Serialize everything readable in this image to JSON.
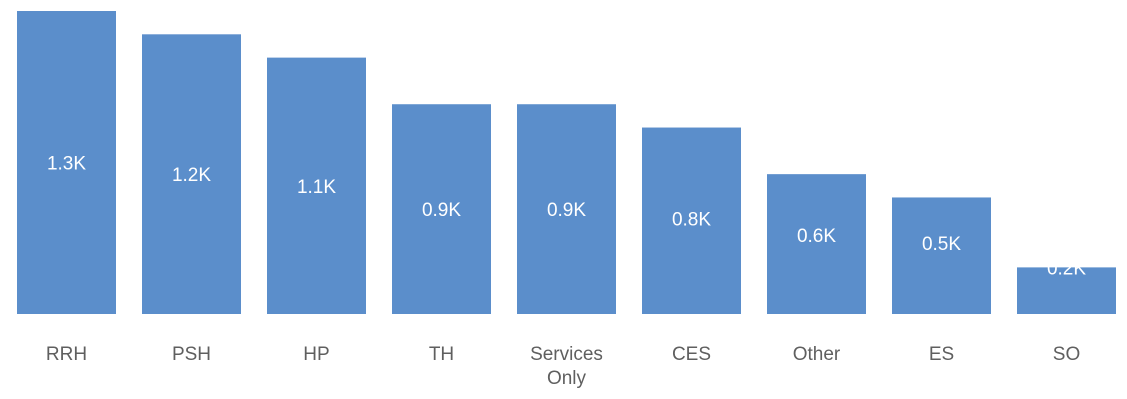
{
  "chart_data": {
    "type": "bar",
    "categories": [
      "RRH",
      "PSH",
      "HP",
      "TH",
      "Services Only",
      "CES",
      "Other",
      "ES",
      "SO"
    ],
    "category_lines": [
      [
        "RRH"
      ],
      [
        "PSH"
      ],
      [
        "HP"
      ],
      [
        "TH"
      ],
      [
        "Services",
        "Only"
      ],
      [
        "CES"
      ],
      [
        "Other"
      ],
      [
        "ES"
      ],
      [
        "SO"
      ]
    ],
    "values": [
      1.3,
      1.2,
      1.1,
      0.9,
      0.9,
      0.8,
      0.6,
      0.5,
      0.2
    ],
    "data_labels": [
      "1.3K",
      "1.2K",
      "1.1K",
      "0.9K",
      "0.9K",
      "0.8K",
      "0.6K",
      "0.5K",
      "0.2K"
    ],
    "unit": "K",
    "title": "",
    "xlabel": "",
    "ylabel": "",
    "grid": false,
    "legend": "none",
    "colors": {
      "bar": "#5b8ecb",
      "data_label": "#ffffff",
      "category_label": "#5f5f5f"
    }
  }
}
